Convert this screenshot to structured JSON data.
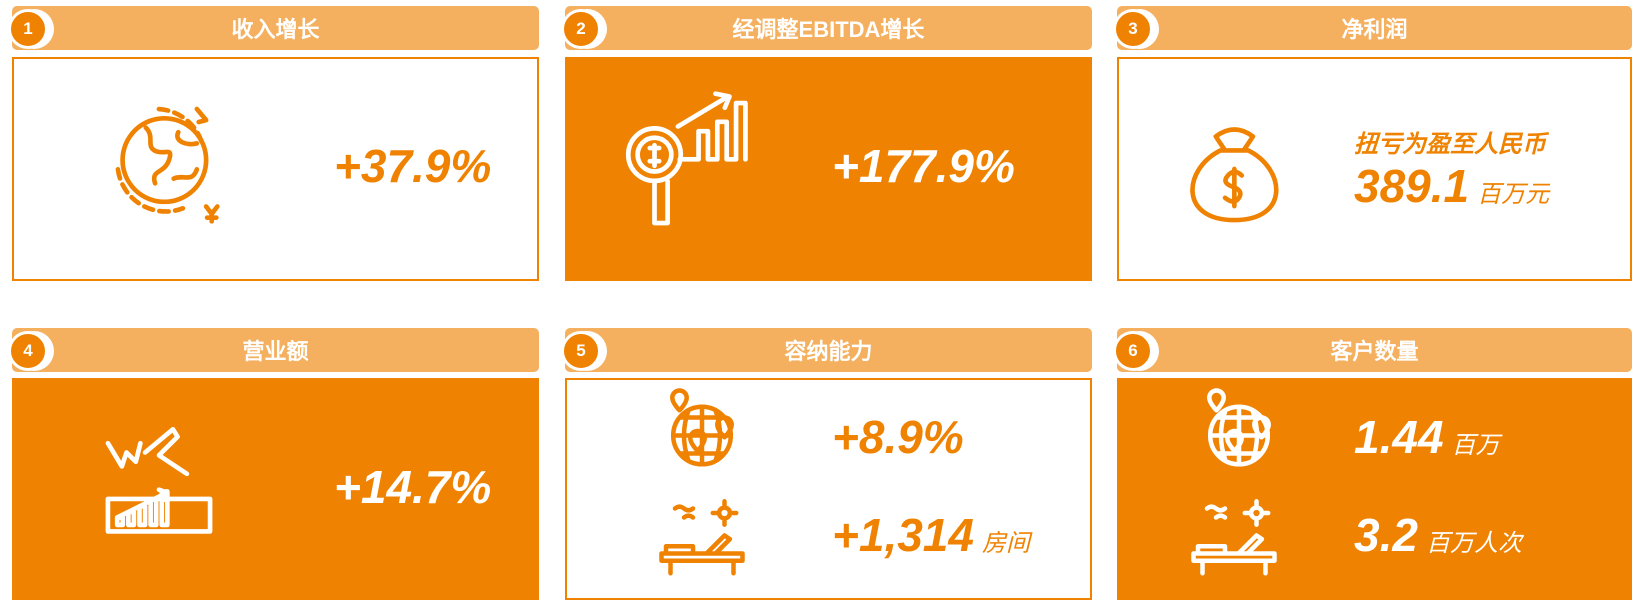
{
  "cards": [
    {
      "number": "1",
      "title": "收入增长",
      "lines": [
        {
          "value": "+37.9%"
        }
      ]
    },
    {
      "number": "2",
      "title": "经调整EBITDA增长",
      "lines": [
        {
          "value": "+177.9%"
        }
      ]
    },
    {
      "number": "3",
      "title": "净利润",
      "caption": "扭亏为盈至人民币",
      "lines": [
        {
          "value": "389.1",
          "unit": "百万元"
        }
      ]
    },
    {
      "number": "4",
      "title": "营业额",
      "lines": [
        {
          "value": "+14.7%"
        }
      ]
    },
    {
      "number": "5",
      "title": "容纳能力",
      "lines": [
        {
          "value": "+8.9%"
        },
        {
          "value": "+1,314",
          "unit": "房间"
        }
      ]
    },
    {
      "number": "6",
      "title": "客户数量",
      "lines": [
        {
          "value": "1.44",
          "unit": "百万"
        },
        {
          "value": "3.2",
          "unit": "百万人次"
        }
      ]
    }
  ]
}
